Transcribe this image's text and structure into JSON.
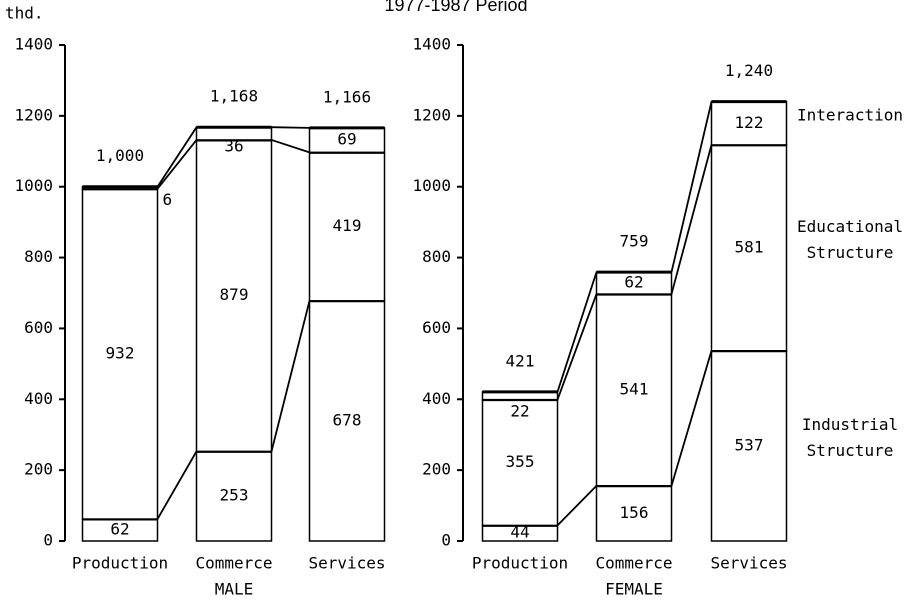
{
  "title": "1977-1987 Period",
  "chart_data": [
    {
      "type": "bar",
      "stacked": true,
      "y_label": "thd.",
      "x_label": "MALE",
      "categories": [
        "Production",
        "Commerce",
        "Services"
      ],
      "series": [
        {
          "color": "#ffffff",
          "values": [
            62,
            253,
            678
          ]
        },
        {
          "color": "#ffffff",
          "values": [
            932,
            879,
            419
          ]
        },
        {
          "color": "#ffffff",
          "values": [
            6,
            36,
            69
          ]
        }
      ],
      "totals": [
        1000,
        1168,
        1166
      ],
      "total_labels": [
        "1,000",
        "1,168",
        "1,166"
      ],
      "ylim": [
        0,
        1400
      ],
      "yticks": [
        0,
        200,
        400,
        600,
        800,
        1000,
        1200,
        1400
      ]
    },
    {
      "type": "bar",
      "stacked": true,
      "x_label": "FEMALE",
      "categories": [
        "Production",
        "Commerce",
        "Services"
      ],
      "series": [
        {
          "name": "Industrial Structure",
          "color": "#ffffff",
          "values": [
            44,
            156,
            537
          ]
        },
        {
          "name": "Educational Structure",
          "color": "#ffffff",
          "values": [
            355,
            541,
            581
          ]
        },
        {
          "name": "Interaction",
          "color": "#ffffff",
          "values": [
            22,
            62,
            122
          ]
        }
      ],
      "totals": [
        421,
        759,
        1240
      ],
      "total_labels": [
        "421",
        "759",
        "1,240"
      ],
      "ylim": [
        0,
        1400
      ],
      "yticks": [
        0,
        200,
        400,
        600,
        800,
        1000,
        1200,
        1400
      ]
    }
  ]
}
